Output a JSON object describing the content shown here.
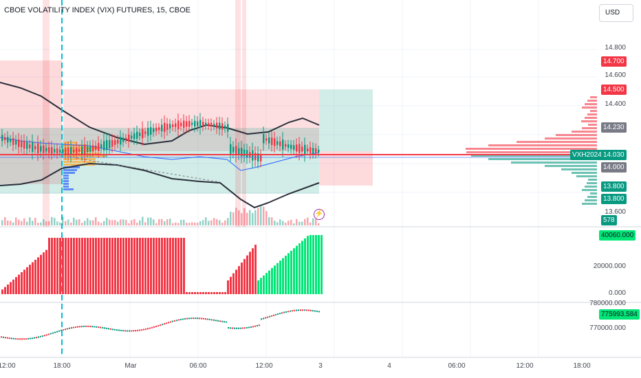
{
  "header": {
    "title": "CBOE VOLATILITY INDEX (VIX) FUTURES, 15, CBOE",
    "currency": "USD"
  },
  "price_axis": {
    "ticks": [
      "14.800",
      "14.600",
      "14.400",
      "13.600"
    ]
  },
  "price_badges": [
    {
      "name": "level-14700-badge",
      "text": "14.700",
      "color": "#f23645"
    },
    {
      "name": "level-14500-badge",
      "text": "14.500",
      "color": "#f23645"
    },
    {
      "name": "level-14230-badge",
      "text": "14.230",
      "color": "#787b86"
    },
    {
      "name": "symbol-badge",
      "text": "VXH2024",
      "color": "#089981"
    },
    {
      "name": "last-price-badge",
      "text": "14.030",
      "color": "#089981"
    },
    {
      "name": "level-14000-badge",
      "text": "14.000",
      "color": "#787b86"
    },
    {
      "name": "level-13800-upper-badge",
      "text": "13.800",
      "color": "#089981"
    },
    {
      "name": "level-13800-lower-badge",
      "text": "13.800",
      "color": "#089981"
    },
    {
      "name": "volume-badge",
      "text": "578",
      "color": "#089981"
    }
  ],
  "pane2": {
    "ticks": [
      "20000.000",
      "0.000"
    ],
    "value_badge": "40060.000",
    "value_color": "#00e676"
  },
  "pane3": {
    "ticks": [
      "780000.000",
      "770000.000"
    ],
    "value_badge": "775993.584",
    "value_color": "#00e676"
  },
  "time_axis": {
    "labels": [
      "12:00",
      "18:00",
      "Mar",
      "06:00",
      "12:00",
      "3",
      "4",
      "06:00",
      "12:00",
      "18:00"
    ]
  },
  "colors": {
    "up": "#089981",
    "down": "#f23645",
    "bull_bar": "#00e676",
    "bear_bar": "#f23645",
    "band": "#2a2e39",
    "ma": "#2962ff",
    "session_line": "#00bcd4"
  }
}
